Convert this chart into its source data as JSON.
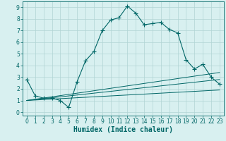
{
  "xlabel": "Humidex (Indice chaleur)",
  "bg_color": "#d8f0f0",
  "grid_color": "#b0d4d4",
  "line_color": "#006666",
  "xlim": [
    -0.5,
    23.5
  ],
  "ylim": [
    -0.3,
    9.5
  ],
  "xticks": [
    0,
    1,
    2,
    3,
    4,
    5,
    6,
    7,
    8,
    9,
    10,
    11,
    12,
    13,
    14,
    15,
    16,
    17,
    18,
    19,
    20,
    21,
    22,
    23
  ],
  "yticks": [
    0,
    1,
    2,
    3,
    4,
    5,
    6,
    7,
    8,
    9
  ],
  "main_x": [
    0,
    1,
    2,
    3,
    4,
    5,
    6,
    7,
    8,
    9,
    10,
    11,
    12,
    13,
    14,
    15,
    16,
    17,
    18,
    19,
    20,
    21,
    22,
    23
  ],
  "main_y": [
    2.8,
    1.4,
    1.2,
    1.2,
    1.0,
    0.4,
    2.6,
    4.4,
    5.2,
    7.0,
    7.9,
    8.1,
    9.1,
    8.5,
    7.5,
    7.6,
    7.7,
    7.1,
    6.8,
    4.5,
    3.7,
    4.1,
    3.0,
    2.4
  ],
  "line1_x": [
    0,
    23
  ],
  "line1_y": [
    1.0,
    1.9
  ],
  "line2_x": [
    0,
    23
  ],
  "line2_y": [
    1.0,
    2.8
  ],
  "line3_x": [
    0,
    23
  ],
  "line3_y": [
    1.0,
    3.4
  ],
  "tick_fontsize": 5.5,
  "xlabel_fontsize": 7
}
